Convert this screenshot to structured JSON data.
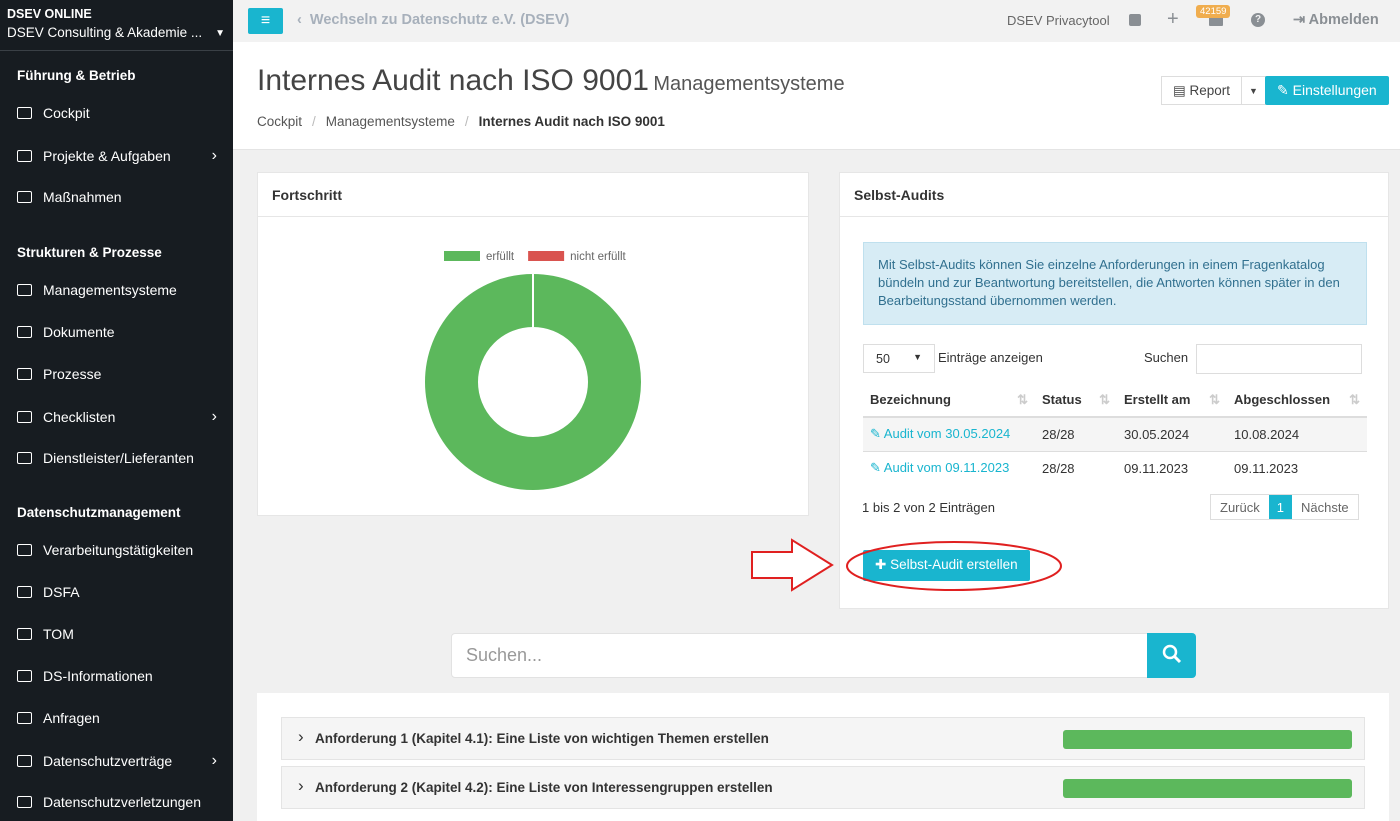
{
  "sidebar": {
    "brand": "DSEV ONLINE",
    "org": "DSEV Consulting & Akademie ...",
    "sections": [
      {
        "title": "Führung & Betrieb",
        "items": [
          {
            "label": "Cockpit",
            "submenu": false
          },
          {
            "label": "Projekte & Aufgaben",
            "submenu": true
          },
          {
            "label": "Maßnahmen",
            "submenu": false
          }
        ]
      },
      {
        "title": "Strukturen & Prozesse",
        "items": [
          {
            "label": "Managementsysteme",
            "submenu": false
          },
          {
            "label": "Dokumente",
            "submenu": false
          },
          {
            "label": "Prozesse",
            "submenu": false
          },
          {
            "label": "Checklisten",
            "submenu": true
          },
          {
            "label": "Dienstleister/Lieferanten",
            "submenu": false
          }
        ]
      },
      {
        "title": "Datenschutzmanagement",
        "items": [
          {
            "label": "Verarbeitungstätigkeiten",
            "submenu": false
          },
          {
            "label": "DSFA",
            "submenu": false
          },
          {
            "label": "TOM",
            "submenu": false
          },
          {
            "label": "DS-Informationen",
            "submenu": false
          },
          {
            "label": "Anfragen",
            "submenu": false
          },
          {
            "label": "Datenschutzverträge",
            "submenu": true
          },
          {
            "label": "Datenschutzverletzungen",
            "submenu": false
          }
        ]
      }
    ]
  },
  "topbar": {
    "switch_link": "Wechseln zu Datenschutz e.V. (DSEV)",
    "tool": "DSEV Privacytool",
    "badge": 42159,
    "logout": "Abmelden"
  },
  "header": {
    "title": "Internes Audit nach ISO 9001",
    "subtitle": "Managementsysteme",
    "breadcrumbs": [
      "Cockpit",
      "Managementsysteme",
      "Internes Audit nach ISO 9001"
    ],
    "report_button": "Report",
    "settings_button": "Einstellungen"
  },
  "chart_data": {
    "type": "doughnut",
    "title": "Fortschritt",
    "categories": [
      "erfüllt",
      "nicht erfüllt"
    ],
    "values": [
      100,
      0
    ],
    "colors": [
      "#5cb85c",
      "#d9534f"
    ]
  },
  "audits": {
    "title": "Selbst-Audits",
    "info": "Mit Selbst-Audits können Sie einzelne Anforderungen in einem Fragenkatalog bündeln und zur Beantwortung bereitstellen, die Antworten können später in den Bearbeitungsstand übernommen werden.",
    "page_size": "50",
    "page_size_label": "Einträge anzeigen",
    "search_label": "Suchen",
    "table": {
      "columns": [
        "Bezeichnung",
        "Status",
        "Erstellt am",
        "Abgeschlossen"
      ],
      "rows": [
        [
          "Audit vom 30.05.2024",
          "28/28",
          "30.05.2024",
          "10.08.2024"
        ],
        [
          "Audit vom 09.11.2023",
          "28/28",
          "09.11.2023",
          "09.11.2023"
        ]
      ]
    },
    "summary": "1 bis 2 von 2 Einträgen",
    "prev": "Zurück",
    "page": 1,
    "next": "Nächste",
    "create_button": "Selbst-Audit erstellen"
  },
  "search": {
    "placeholder": "Suchen..."
  },
  "requirements": [
    {
      "label": "Anforderung 1 (Kapitel 4.1): Eine Liste von wichtigen Themen erstellen",
      "progress": 100
    },
    {
      "label": "Anforderung 2 (Kapitel 4.2): Eine Liste von Interessengruppen erstellen",
      "progress": 100
    }
  ]
}
